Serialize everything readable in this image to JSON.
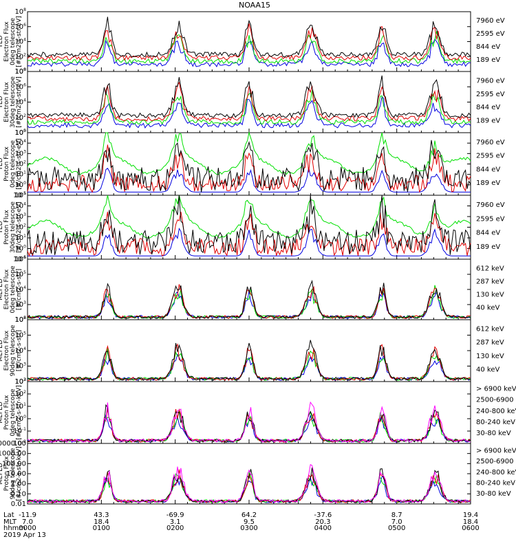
{
  "title": "NOAA15",
  "colors": {
    "black": "#000000",
    "red": "#e00000",
    "green": "#00e000",
    "blue": "#0000e0",
    "magenta": "#ff00ff"
  },
  "chart_data": [
    {
      "type": "line",
      "log_y": true,
      "ylabel": [
        "TED",
        "Electron Flux",
        "0deg telescope",
        "[#/cm2-s-str-eV]"
      ],
      "yticks": [
        "10^0",
        "10^2",
        "10^4",
        "10^6",
        "10^8"
      ],
      "ylim_exp": [
        0,
        8
      ],
      "series": [
        {
          "name": "7960 eV",
          "color": "black"
        },
        {
          "name": "2595 eV",
          "color": "red"
        },
        {
          "name": "844 eV",
          "color": "green"
        },
        {
          "name": "189 eV",
          "color": "blue"
        }
      ]
    },
    {
      "type": "line",
      "log_y": true,
      "ylabel": [
        "TED",
        "Electron Flux",
        "30deg telescope",
        "[#/cm2-s-str-eV]"
      ],
      "yticks": [
        "10^0",
        "10^2",
        "10^4",
        "10^6",
        "10^8"
      ],
      "ylim_exp": [
        0,
        8
      ],
      "series": [
        {
          "name": "7960 eV",
          "color": "black"
        },
        {
          "name": "2595 eV",
          "color": "red"
        },
        {
          "name": "844 eV",
          "color": "green"
        },
        {
          "name": "189 eV",
          "color": "blue"
        }
      ]
    },
    {
      "type": "line",
      "log_y": true,
      "ylabel": [
        "TED",
        "Proton Flux",
        "0deg telescope",
        "[#/cm2-s-str-eV]"
      ],
      "yticks": [
        "10^-1",
        "10^0",
        "10^1",
        "10^2",
        "10^3",
        "10^4",
        "10^5"
      ],
      "ylim_exp": [
        -1,
        5
      ],
      "series": [
        {
          "name": "7960 eV",
          "color": "black"
        },
        {
          "name": "2595 eV",
          "color": "red"
        },
        {
          "name": "844 eV",
          "color": "green"
        },
        {
          "name": "189 eV",
          "color": "blue"
        }
      ]
    },
    {
      "type": "line",
      "log_y": true,
      "ylabel": [
        "TED",
        "Proton Flux",
        "30deg telescope",
        "[#/cm2-s-str-eV]"
      ],
      "yticks": [
        "10^-1",
        "10^0",
        "10^1",
        "10^2",
        "10^3",
        "10^4",
        "10^5"
      ],
      "ylim_exp": [
        -1,
        5
      ],
      "series": [
        {
          "name": "7960 eV",
          "color": "black"
        },
        {
          "name": "2595 eV",
          "color": "red"
        },
        {
          "name": "844 eV",
          "color": "green"
        },
        {
          "name": "189 eV",
          "color": "blue"
        }
      ]
    },
    {
      "type": "line",
      "log_y": true,
      "ylabel": [
        "MEPED",
        "Electron Flux",
        "0deg telescope",
        "[#/cm2-s-str]"
      ],
      "yticks": [
        "10^2",
        "10^3",
        "10^4",
        "10^5",
        "10^6"
      ],
      "ylim_exp": [
        2,
        6
      ],
      "series": [
        {
          "name": "612 keV",
          "color": "black"
        },
        {
          "name": "287 keV",
          "color": "red"
        },
        {
          "name": "130 keV",
          "color": "green"
        },
        {
          "name": "40 keV",
          "color": "blue"
        }
      ]
    },
    {
      "type": "line",
      "log_y": true,
      "ylabel": [
        "MEPED",
        "Electron Flux",
        "90deg telescope",
        "[#/cm2-s-str]"
      ],
      "yticks": [
        "10^2",
        "10^3",
        "10^4",
        "10^5",
        "10^6"
      ],
      "ylim_exp": [
        2,
        6
      ],
      "series": [
        {
          "name": "612 keV",
          "color": "black"
        },
        {
          "name": "287 keV",
          "color": "red"
        },
        {
          "name": "130 keV",
          "color": "green"
        },
        {
          "name": "40 keV",
          "color": "blue"
        }
      ]
    },
    {
      "type": "line",
      "log_y": true,
      "ylabel": [
        "MEPED",
        "Proton Flux",
        "0deg telescope",
        "[#/cm2-s-str-keV]"
      ],
      "yticks": [
        "10^-2",
        "10^-1",
        "10^0",
        "10^1",
        "10^2",
        "10^3"
      ],
      "ylim_exp": [
        -2,
        3
      ],
      "series": [
        {
          "name": "> 6900 keV",
          "color": "magenta"
        },
        {
          "name": "2500-6900",
          "color": "black"
        },
        {
          "name": "240-800 keV",
          "color": "red"
        },
        {
          "name": "80-240 keV",
          "color": "green"
        },
        {
          "name": "30-80 keV",
          "color": "blue"
        }
      ]
    },
    {
      "type": "line",
      "log_y": true,
      "ylabel": [
        "MEPED",
        "Proton Flux",
        "90deg telescope",
        "[#/cm2-s-str-keV]"
      ],
      "yticks": [
        "0.01",
        "0.10",
        "1.00",
        "10.00",
        "100.00",
        "1000.00",
        "10000.00"
      ],
      "ylim_exp": [
        -2,
        4
      ],
      "series": [
        {
          "name": "> 6900 keV",
          "color": "magenta"
        },
        {
          "name": "2500-6900",
          "color": "black"
        },
        {
          "name": "240-800 keV",
          "color": "red"
        },
        {
          "name": "80-240 keV",
          "color": "green"
        },
        {
          "name": "30-80 keV",
          "color": "blue"
        }
      ]
    }
  ],
  "x_axis": {
    "row_labels": [
      "Lat",
      "MLT",
      "hhmm"
    ],
    "date": "2019 Apr 13",
    "ticks": [
      {
        "lat": "-11.9",
        "mlt": "7.0",
        "hhmm": "0000"
      },
      {
        "lat": "43.3",
        "mlt": "18.4",
        "hhmm": "0100"
      },
      {
        "lat": "-69.9",
        "mlt": "3.1",
        "hhmm": "0200"
      },
      {
        "lat": "64.2",
        "mlt": "9.5",
        "hhmm": "0300"
      },
      {
        "lat": "-37.6",
        "mlt": "20.3",
        "hhmm": "0400"
      },
      {
        "lat": "8.7",
        "mlt": "7.0",
        "hhmm": "0500"
      },
      {
        "lat": "19.4",
        "mlt": "18.4",
        "hhmm": "0600"
      }
    ]
  }
}
